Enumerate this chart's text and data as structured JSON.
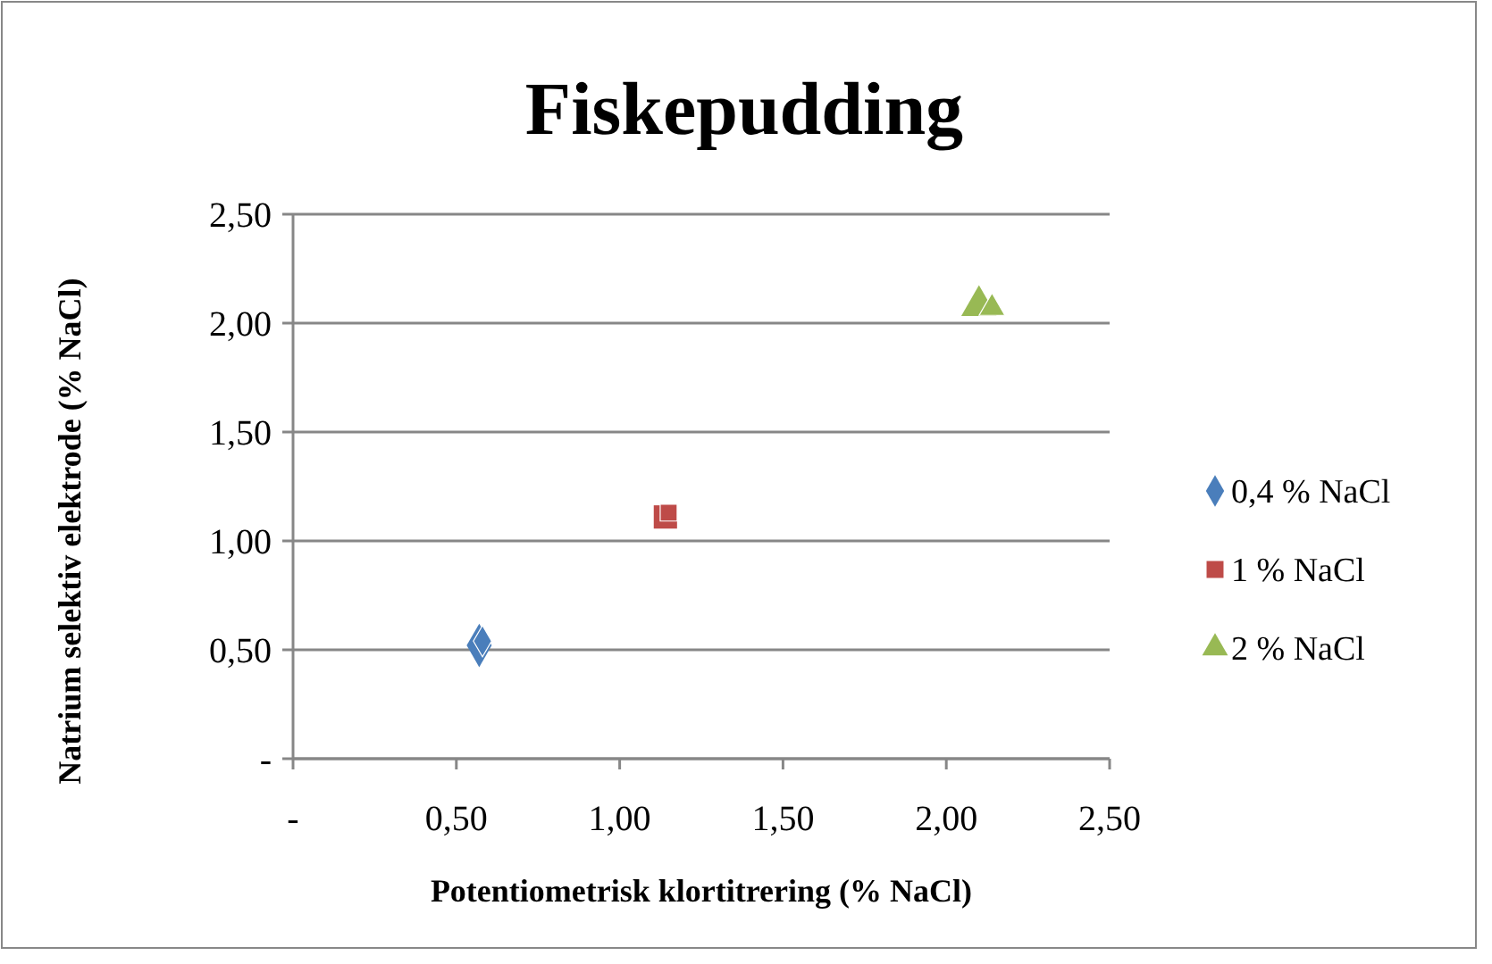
{
  "chart_data": {
    "type": "scatter",
    "title": "Fiskepudding",
    "xlabel": "Potentiometrisk klortitrering (% NaCl)",
    "ylabel": "Natrium selektiv elektrode (% NaCl)",
    "xlim": [
      0,
      2.5
    ],
    "ylim": [
      0,
      2.5
    ],
    "xticks": [
      {
        "value": 0,
        "label": "-"
      },
      {
        "value": 0.5,
        "label": "0,50"
      },
      {
        "value": 1,
        "label": "1,00"
      },
      {
        "value": 1.5,
        "label": "1,50"
      },
      {
        "value": 2,
        "label": "2,00"
      },
      {
        "value": 2.5,
        "label": "2,50"
      }
    ],
    "yticks": [
      {
        "value": 0,
        "label": "-"
      },
      {
        "value": 0.5,
        "label": "0,50"
      },
      {
        "value": 1,
        "label": "1,00"
      },
      {
        "value": 1.5,
        "label": "1,50"
      },
      {
        "value": 2,
        "label": "2,00"
      },
      {
        "value": 2.5,
        "label": "2,50"
      }
    ],
    "grid": "y",
    "legend": "right",
    "series": [
      {
        "name": "0,4 % NaCl",
        "color": "#4a7ebb",
        "marker": "diamond",
        "x": [
          0.57,
          0.58
        ],
        "values": [
          0.52,
          0.54
        ]
      },
      {
        "name": "1 % NaCl",
        "color": "#be4b48",
        "marker": "square",
        "x": [
          1.14,
          1.15
        ],
        "values": [
          1.11,
          1.13
        ]
      },
      {
        "name": "2 % NaCl",
        "color": "#98b954",
        "marker": "triangle",
        "x": [
          2.1,
          2.14
        ],
        "values": [
          2.08,
          2.07
        ]
      }
    ]
  }
}
